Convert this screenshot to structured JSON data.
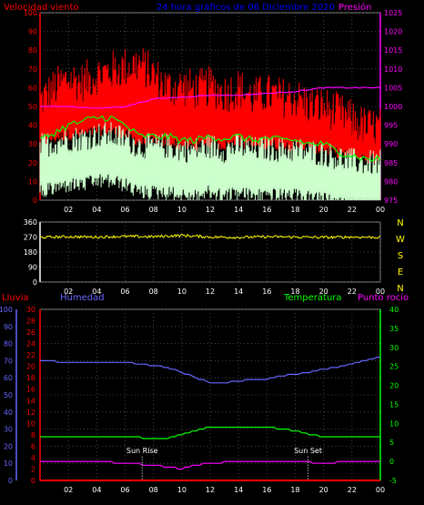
{
  "header": {
    "title": "24 hora gráficos de 06 Diciembre 2020",
    "left_label": "Velocidad viento",
    "right_label": "Presión"
  },
  "colors": {
    "wind": "#ff0000",
    "avg": "#00ff00",
    "gust_light": "#ccffcc",
    "pressure": "#ff00ff",
    "direction": "#ffff00",
    "humidity": "#6666ff",
    "temperature": "#00ff00",
    "dewpoint": "#ff00ff",
    "rain": "#ff0000",
    "grid": "#555555",
    "axis_left": "#ff0000",
    "axis_right": "#ff00ff",
    "title": "#0000ff"
  },
  "panel3_labels": {
    "rain": "Lluvia",
    "humidity": "Humedad",
    "temperature": "Temperatura",
    "dewpoint": "Punto rocío",
    "sun_rise": "Sun Rise",
    "sun_set": "Sun Set"
  },
  "chart_data": [
    {
      "type": "line",
      "title": "24 hora gráficos de 06 Diciembre 2020",
      "x_ticks": [
        "02",
        "04",
        "06",
        "08",
        "10",
        "12",
        "14",
        "16",
        "18",
        "20",
        "22",
        "00"
      ],
      "y_left_label": "Velocidad viento",
      "y_left_range": [
        0,
        100
      ],
      "y_left_ticks": [
        0,
        10,
        20,
        30,
        40,
        50,
        60,
        70,
        80,
        90,
        100
      ],
      "y_right_label": "Presión",
      "y_right_range": [
        975,
        1025
      ],
      "y_right_ticks": [
        975,
        980,
        985,
        990,
        995,
        1000,
        1005,
        1010,
        1015,
        1020,
        1025
      ],
      "grid": true,
      "series": [
        {
          "name": "Velocidad viento",
          "x": [
            0,
            1,
            2,
            3,
            4,
            5,
            6,
            7,
            8,
            9,
            10,
            11,
            12,
            13,
            14,
            15,
            16,
            17,
            18,
            19,
            20,
            21,
            22,
            23,
            24
          ],
          "values": [
            48,
            55,
            60,
            58,
            62,
            64,
            66,
            68,
            62,
            55,
            56,
            54,
            56,
            52,
            55,
            50,
            52,
            50,
            50,
            46,
            45,
            42,
            38,
            34,
            34
          ]
        },
        {
          "x": [
            0,
            1,
            2,
            3,
            4,
            5,
            6,
            7,
            8,
            9,
            10,
            11,
            12,
            13,
            14,
            15,
            16,
            17,
            18,
            19,
            20,
            21,
            22,
            23,
            24
          ],
          "values": [
            32,
            36,
            40,
            42,
            44,
            44,
            40,
            34,
            34,
            34,
            32,
            32,
            34,
            33,
            34,
            32,
            33,
            32,
            32,
            30,
            30,
            26,
            24,
            22,
            22
          ]
        },
        {
          "x": [
            0,
            1,
            2,
            3,
            4,
            5,
            6,
            7,
            8,
            9,
            10,
            11,
            12,
            13,
            14,
            15,
            16,
            17,
            18,
            19,
            20,
            21,
            22,
            23,
            24
          ],
          "values": [
            22,
            24,
            26,
            26,
            28,
            28,
            26,
            22,
            22,
            22,
            20,
            20,
            22,
            20,
            22,
            20,
            21,
            20,
            20,
            19,
            18,
            16,
            14,
            13,
            13
          ]
        },
        {
          "name": "Presión",
          "x": [
            0,
            2,
            4,
            6,
            8,
            10,
            12,
            14,
            16,
            18,
            20,
            22,
            24
          ],
          "values": [
            1000,
            1000,
            999.5,
            1000,
            1002,
            1002.5,
            1003,
            1003,
            1003.5,
            1004,
            1005,
            1005,
            1005
          ]
        }
      ]
    },
    {
      "type": "line",
      "x_ticks": [
        "02",
        "04",
        "06",
        "08",
        "10",
        "12",
        "14",
        "16",
        "18",
        "20",
        "22",
        "00"
      ],
      "y_range": [
        0,
        360
      ],
      "y_ticks": [
        0,
        90,
        180,
        270,
        360
      ],
      "compass_labels": [
        "N",
        "W",
        "S",
        "E",
        "N"
      ],
      "grid": true,
      "series": [
        {
          "x": [
            0,
            2,
            4,
            6,
            8,
            10,
            12,
            14,
            16,
            18,
            20,
            22,
            24
          ],
          "values": [
            268,
            272,
            270,
            274,
            272,
            280,
            270,
            268,
            272,
            270,
            268,
            270,
            268
          ]
        }
      ]
    },
    {
      "type": "line",
      "x_ticks": [
        "02",
        "04",
        "06",
        "08",
        "10",
        "12",
        "14",
        "16",
        "18",
        "20",
        "22",
        "00"
      ],
      "y_humidity_range": [
        0,
        100
      ],
      "y_humidity_ticks": [
        0,
        10,
        20,
        30,
        40,
        50,
        60,
        70,
        80,
        90,
        100
      ],
      "y_rain_range": [
        0,
        30
      ],
      "y_rain_ticks": [
        0,
        2,
        4,
        6,
        8,
        10,
        12,
        14,
        16,
        18,
        20,
        22,
        24,
        26,
        28,
        30
      ],
      "y_temp_range": [
        -5,
        40
      ],
      "y_temp_ticks": [
        -5,
        0,
        5,
        10,
        15,
        20,
        25,
        30,
        35,
        40
      ],
      "grid": true,
      "series": [
        {
          "name": "Humedad",
          "x": [
            0,
            2,
            4,
            6,
            7,
            8,
            9,
            10,
            11,
            12,
            13,
            14,
            15,
            16,
            17,
            18,
            19,
            20,
            21,
            22,
            23,
            24
          ],
          "values": [
            70,
            69,
            69,
            69,
            68,
            67,
            66,
            63,
            60,
            57,
            57,
            58,
            59,
            59,
            61,
            62,
            63,
            65,
            66,
            68,
            70,
            72
          ]
        },
        {
          "name": "Temperatura",
          "x": [
            0,
            2,
            4,
            6,
            8,
            9,
            10,
            11,
            12,
            13,
            14,
            15,
            16,
            17,
            18,
            19,
            20,
            21,
            22,
            23,
            24
          ],
          "values": [
            6.5,
            6.5,
            6.5,
            6.5,
            6,
            6,
            7,
            8,
            9,
            9,
            9,
            9,
            9,
            8.5,
            8,
            7,
            6.5,
            6.5,
            6.5,
            6.5,
            6.5
          ]
        },
        {
          "name": "Punto rocío",
          "x": [
            0,
            2,
            4,
            6,
            8,
            9,
            10,
            11,
            12,
            14,
            16,
            18,
            20,
            22,
            24
          ],
          "values": [
            0,
            0,
            0,
            -0.5,
            -1,
            -1.5,
            -2,
            -1,
            -0.5,
            0,
            0,
            0,
            -0.5,
            0,
            0
          ]
        },
        {
          "name": "Lluvia",
          "x": [
            0,
            24
          ],
          "values": [
            0,
            0
          ]
        }
      ]
    }
  ]
}
